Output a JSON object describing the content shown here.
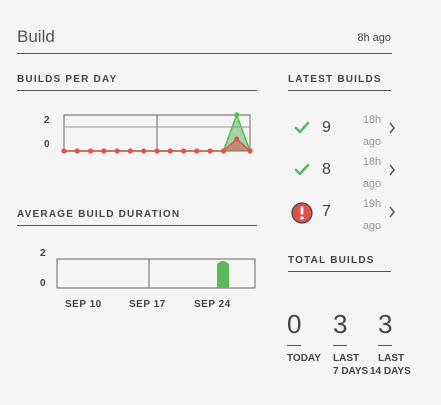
{
  "header": {
    "title": "Build",
    "ago": "8h ago"
  },
  "builds_per_day": {
    "heading": "BUILDS PER DAY",
    "y_ticks": [
      "2",
      "0"
    ],
    "chart_data": {
      "type": "line",
      "x": [
        1,
        2,
        3,
        4,
        5,
        6,
        7,
        8,
        9,
        10,
        11,
        12,
        13,
        14,
        15
      ],
      "series": [
        {
          "color": "#5cb85c",
          "values": [
            0,
            0,
            0,
            0,
            0,
            0,
            0,
            0,
            0,
            0,
            0,
            0,
            0,
            3,
            0
          ]
        },
        {
          "color": "#d9534f",
          "values": [
            0,
            0,
            0,
            0,
            0,
            0,
            0,
            0,
            0,
            0,
            0,
            0,
            0,
            1,
            0
          ]
        }
      ],
      "ylim": [
        0,
        3
      ]
    }
  },
  "avg_duration": {
    "heading": "AVERAGE BUILD DURATION",
    "y_ticks": [
      "2",
      "0"
    ],
    "x_labels": [
      "SEP 10",
      "SEP 17",
      "SEP 24"
    ],
    "chart_data": {
      "type": "area",
      "color": "#5cb85c",
      "ylim": [
        0,
        2
      ]
    }
  },
  "latest": {
    "heading": "LATEST BUILDS",
    "items": [
      {
        "status": "success",
        "number": "9",
        "ago_line1": "18h",
        "ago_line2": "ago"
      },
      {
        "status": "success",
        "number": "8",
        "ago_line1": "18h",
        "ago_line2": "ago"
      },
      {
        "status": "failure",
        "number": "7",
        "ago_line1": "19h",
        "ago_line2": "ago"
      }
    ]
  },
  "totals": {
    "heading": "TOTAL BUILDS",
    "items": [
      {
        "value": "0",
        "label1": "TODAY",
        "label2": ""
      },
      {
        "value": "3",
        "label1": "LAST",
        "label2": "7 DAYS"
      },
      {
        "value": "3",
        "label1": "LAST",
        "label2": "14 DAYS"
      }
    ]
  },
  "colors": {
    "success": "#5cb85c",
    "failure": "#d9534f"
  }
}
